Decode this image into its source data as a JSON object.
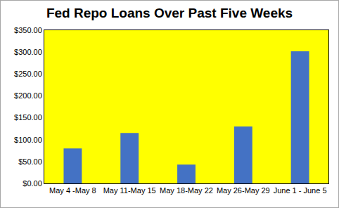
{
  "chart_data": {
    "type": "bar",
    "title": "Fed Repo Loans Over Past Five Weeks",
    "categories": [
      "May 4 -May 8",
      "May 11-May 15",
      "May 18-May 22",
      "May 26-May 29",
      "June 1 - June 5"
    ],
    "values": [
      80,
      115,
      43,
      130,
      302
    ],
    "color": "#4472c4",
    "ylim": [
      0,
      350
    ],
    "yticks": [
      {
        "value": 0,
        "label": "$0.00"
      },
      {
        "value": 50,
        "label": "$50.00"
      },
      {
        "value": 100,
        "label": "$100.00"
      },
      {
        "value": 150,
        "label": "$150.00"
      },
      {
        "value": 200,
        "label": "$200.00"
      },
      {
        "value": 250,
        "label": "$250.00"
      },
      {
        "value": 300,
        "label": "$300.00"
      },
      {
        "value": 350,
        "label": "$350.00"
      }
    ],
    "grid": false
  }
}
